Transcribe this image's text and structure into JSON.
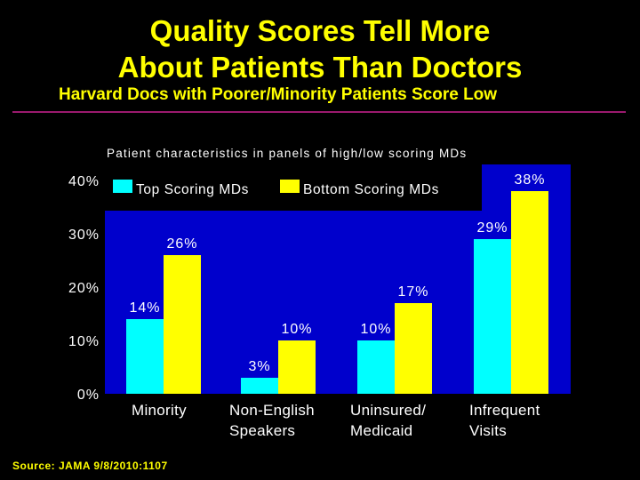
{
  "header": {
    "title_line1": "Quality Scores Tell More",
    "title_line2": "About Patients Than Doctors",
    "subtitle": "Harvard Docs with Poorer/Minority Patients Score Low"
  },
  "footer": {
    "source": "Source: JAMA 9/8/2010:1107"
  },
  "colors": {
    "top": "#00ffff",
    "bottom": "#ffff00",
    "plot_bg": "#0000cc",
    "title": "#ffff00"
  },
  "chart_data": {
    "type": "bar",
    "title": "Patient characteristics in panels of high/low scoring MDs",
    "categories": [
      "Minority",
      "Non-English Speakers",
      "Uninsured/ Medicaid",
      "Infrequent Visits"
    ],
    "category_lines": [
      [
        "Minority"
      ],
      [
        "Non-English",
        "Speakers"
      ],
      [
        "Uninsured/",
        "Medicaid"
      ],
      [
        "Infrequent",
        "Visits"
      ]
    ],
    "series": [
      {
        "name": "Top Scoring MDs",
        "values": [
          14,
          3,
          10,
          29
        ],
        "labels": [
          "14%",
          "3%",
          "10%",
          "29%"
        ]
      },
      {
        "name": "Bottom Scoring MDs",
        "values": [
          26,
          10,
          17,
          38
        ],
        "labels": [
          "26%",
          "10%",
          "17%",
          "38%"
        ]
      }
    ],
    "yticks": [
      "0%",
      "10%",
      "20%",
      "30%",
      "40%"
    ],
    "ylim": [
      0,
      40
    ],
    "ylabel": "",
    "xlabel": "",
    "legend": "top-left"
  }
}
